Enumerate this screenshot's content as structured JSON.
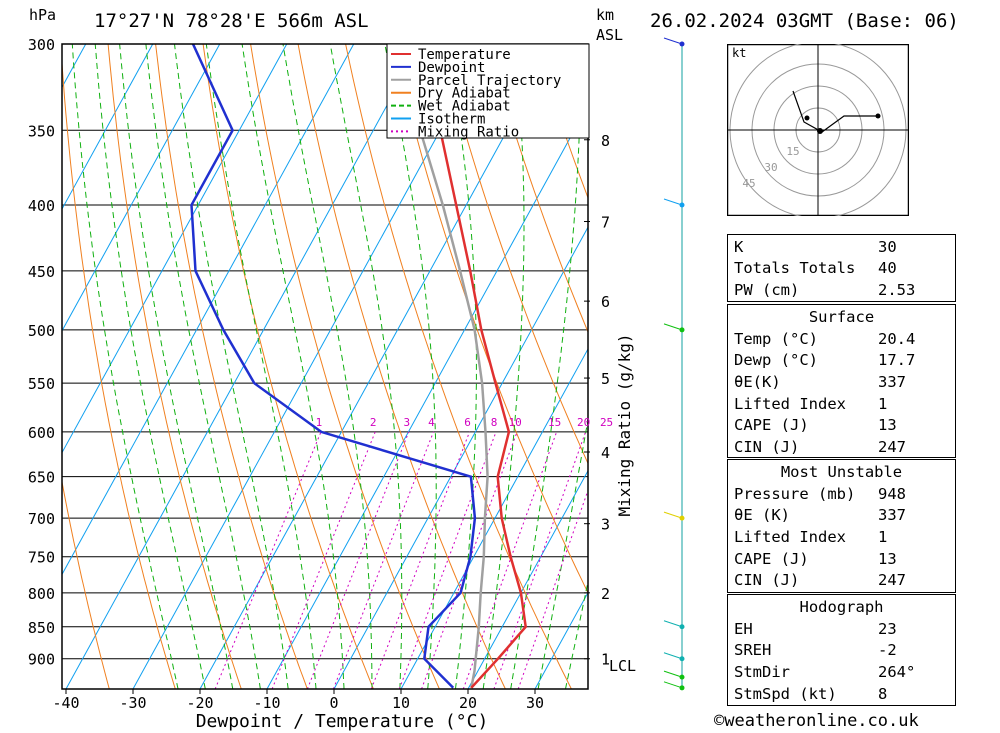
{
  "header": {
    "hpa_unit": "hPa",
    "location": "17°27'N 78°28'E 566m ASL",
    "km_unit": "km",
    "asl_unit": "ASL",
    "datetime": "26.02.2024 03GMT (Base: 06)"
  },
  "chart_data": {
    "type": "skew-t",
    "xlabel": "Dewpoint / Temperature (°C)",
    "ylabel": "hPa",
    "ylabel_right": "Mixing Ratio (g/kg)",
    "x_ticks": [
      -40,
      -30,
      -20,
      -10,
      0,
      10,
      20,
      30
    ],
    "pressure_levels": [
      300,
      350,
      400,
      450,
      500,
      550,
      600,
      650,
      700,
      750,
      800,
      850,
      900
    ],
    "km_ticks": [
      1,
      2,
      3,
      4,
      5,
      6,
      7,
      8
    ],
    "lcl_label": "LCL",
    "mixing_ratio_labels": [
      "1",
      "2",
      "3",
      "4",
      "6",
      "8",
      "10",
      "15",
      "20",
      "25"
    ],
    "legend": [
      "Temperature",
      "Dewpoint",
      "Parcel Trajectory",
      "Dry Adiabat",
      "Wet Adiabat",
      "Isotherm",
      "Mixing Ratio"
    ],
    "colors": {
      "temperature": "#e03030",
      "dewpoint": "#2030d0",
      "parcel": "#a0a0a0",
      "dry_adiabat": "#f08020",
      "wet_adiabat": "#10b010",
      "isotherm": "#10a0f0",
      "mixing_ratio": "#d000c0"
    },
    "temperature": [
      {
        "p": 948,
        "t": 20.4
      },
      {
        "p": 900,
        "t": 22
      },
      {
        "p": 850,
        "t": 23.5
      },
      {
        "p": 800,
        "t": 20
      },
      {
        "p": 750,
        "t": 15.5
      },
      {
        "p": 700,
        "t": 11
      },
      {
        "p": 650,
        "t": 7
      },
      {
        "p": 600,
        "t": 5
      },
      {
        "p": 550,
        "t": -1
      },
      {
        "p": 500,
        "t": -7.5
      },
      {
        "p": 450,
        "t": -14
      },
      {
        "p": 400,
        "t": -21.5
      },
      {
        "p": 350,
        "t": -30
      },
      {
        "p": 300,
        "t": -41
      }
    ],
    "dewpoint": [
      {
        "p": 948,
        "t": 17.7
      },
      {
        "p": 900,
        "t": 11
      },
      {
        "p": 850,
        "t": 9
      },
      {
        "p": 800,
        "t": 11
      },
      {
        "p": 750,
        "t": 9.5
      },
      {
        "p": 700,
        "t": 7
      },
      {
        "p": 650,
        "t": 3
      },
      {
        "p": 600,
        "t": -23
      },
      {
        "p": 550,
        "t": -37
      },
      {
        "p": 500,
        "t": -46
      },
      {
        "p": 450,
        "t": -55
      },
      {
        "p": 400,
        "t": -61
      },
      {
        "p": 350,
        "t": -61
      },
      {
        "p": 300,
        "t": -74
      }
    ],
    "parcel": [
      {
        "p": 948,
        "t": 20.4
      },
      {
        "p": 920,
        "t": 19.5
      },
      {
        "p": 850,
        "t": 16.5
      },
      {
        "p": 800,
        "t": 14
      },
      {
        "p": 750,
        "t": 11.5
      },
      {
        "p": 700,
        "t": 8.5
      },
      {
        "p": 650,
        "t": 5.5
      },
      {
        "p": 600,
        "t": 1.5
      },
      {
        "p": 550,
        "t": -3
      },
      {
        "p": 500,
        "t": -8.5
      },
      {
        "p": 450,
        "t": -15.5
      },
      {
        "p": 400,
        "t": -23.5
      },
      {
        "p": 350,
        "t": -33
      },
      {
        "p": 300,
        "t": -44
      }
    ],
    "wind_profile": [
      {
        "p": 948,
        "color": "#10c010"
      },
      {
        "p": 930,
        "color": "#10c010"
      },
      {
        "p": 900,
        "color": "#10b0b0"
      },
      {
        "p": 850,
        "color": "#10b0b0"
      },
      {
        "p": 700,
        "color": "#e0d000"
      },
      {
        "p": 500,
        "color": "#10c010"
      },
      {
        "p": 400,
        "color": "#10a0f0"
      },
      {
        "p": 300,
        "color": "#2030d0"
      }
    ]
  },
  "hodograph": {
    "unit": "kt",
    "ring_labels": [
      "15",
      "30",
      "45"
    ]
  },
  "indices": [
    {
      "label": "K",
      "value": "30"
    },
    {
      "label": "Totals Totals",
      "value": "40"
    },
    {
      "label": "PW (cm)",
      "value": "2.53"
    }
  ],
  "surface": {
    "title": "Surface",
    "rows": [
      {
        "label": "Temp (°C)",
        "value": "20.4"
      },
      {
        "label": "Dewp (°C)",
        "value": "17.7"
      },
      {
        "label": "θE(K)",
        "value": "337"
      },
      {
        "label": "Lifted Index",
        "value": "1"
      },
      {
        "label": "CAPE (J)",
        "value": "13"
      },
      {
        "label": "CIN (J)",
        "value": "247"
      }
    ]
  },
  "most_unstable": {
    "title": "Most Unstable",
    "rows": [
      {
        "label": "Pressure (mb)",
        "value": "948"
      },
      {
        "label": "θE (K)",
        "value": "337"
      },
      {
        "label": "Lifted Index",
        "value": "1"
      },
      {
        "label": "CAPE (J)",
        "value": "13"
      },
      {
        "label": "CIN (J)",
        "value": "247"
      }
    ]
  },
  "hodograph_table": {
    "title": "Hodograph",
    "rows": [
      {
        "label": "EH",
        "value": "23"
      },
      {
        "label": "SREH",
        "value": "-2"
      },
      {
        "label": "StmDir",
        "value": "264°"
      },
      {
        "label": "StmSpd (kt)",
        "value": "8"
      }
    ]
  },
  "footer": {
    "copyright_symbol": "©",
    "site": "weatheronline.co.uk"
  }
}
